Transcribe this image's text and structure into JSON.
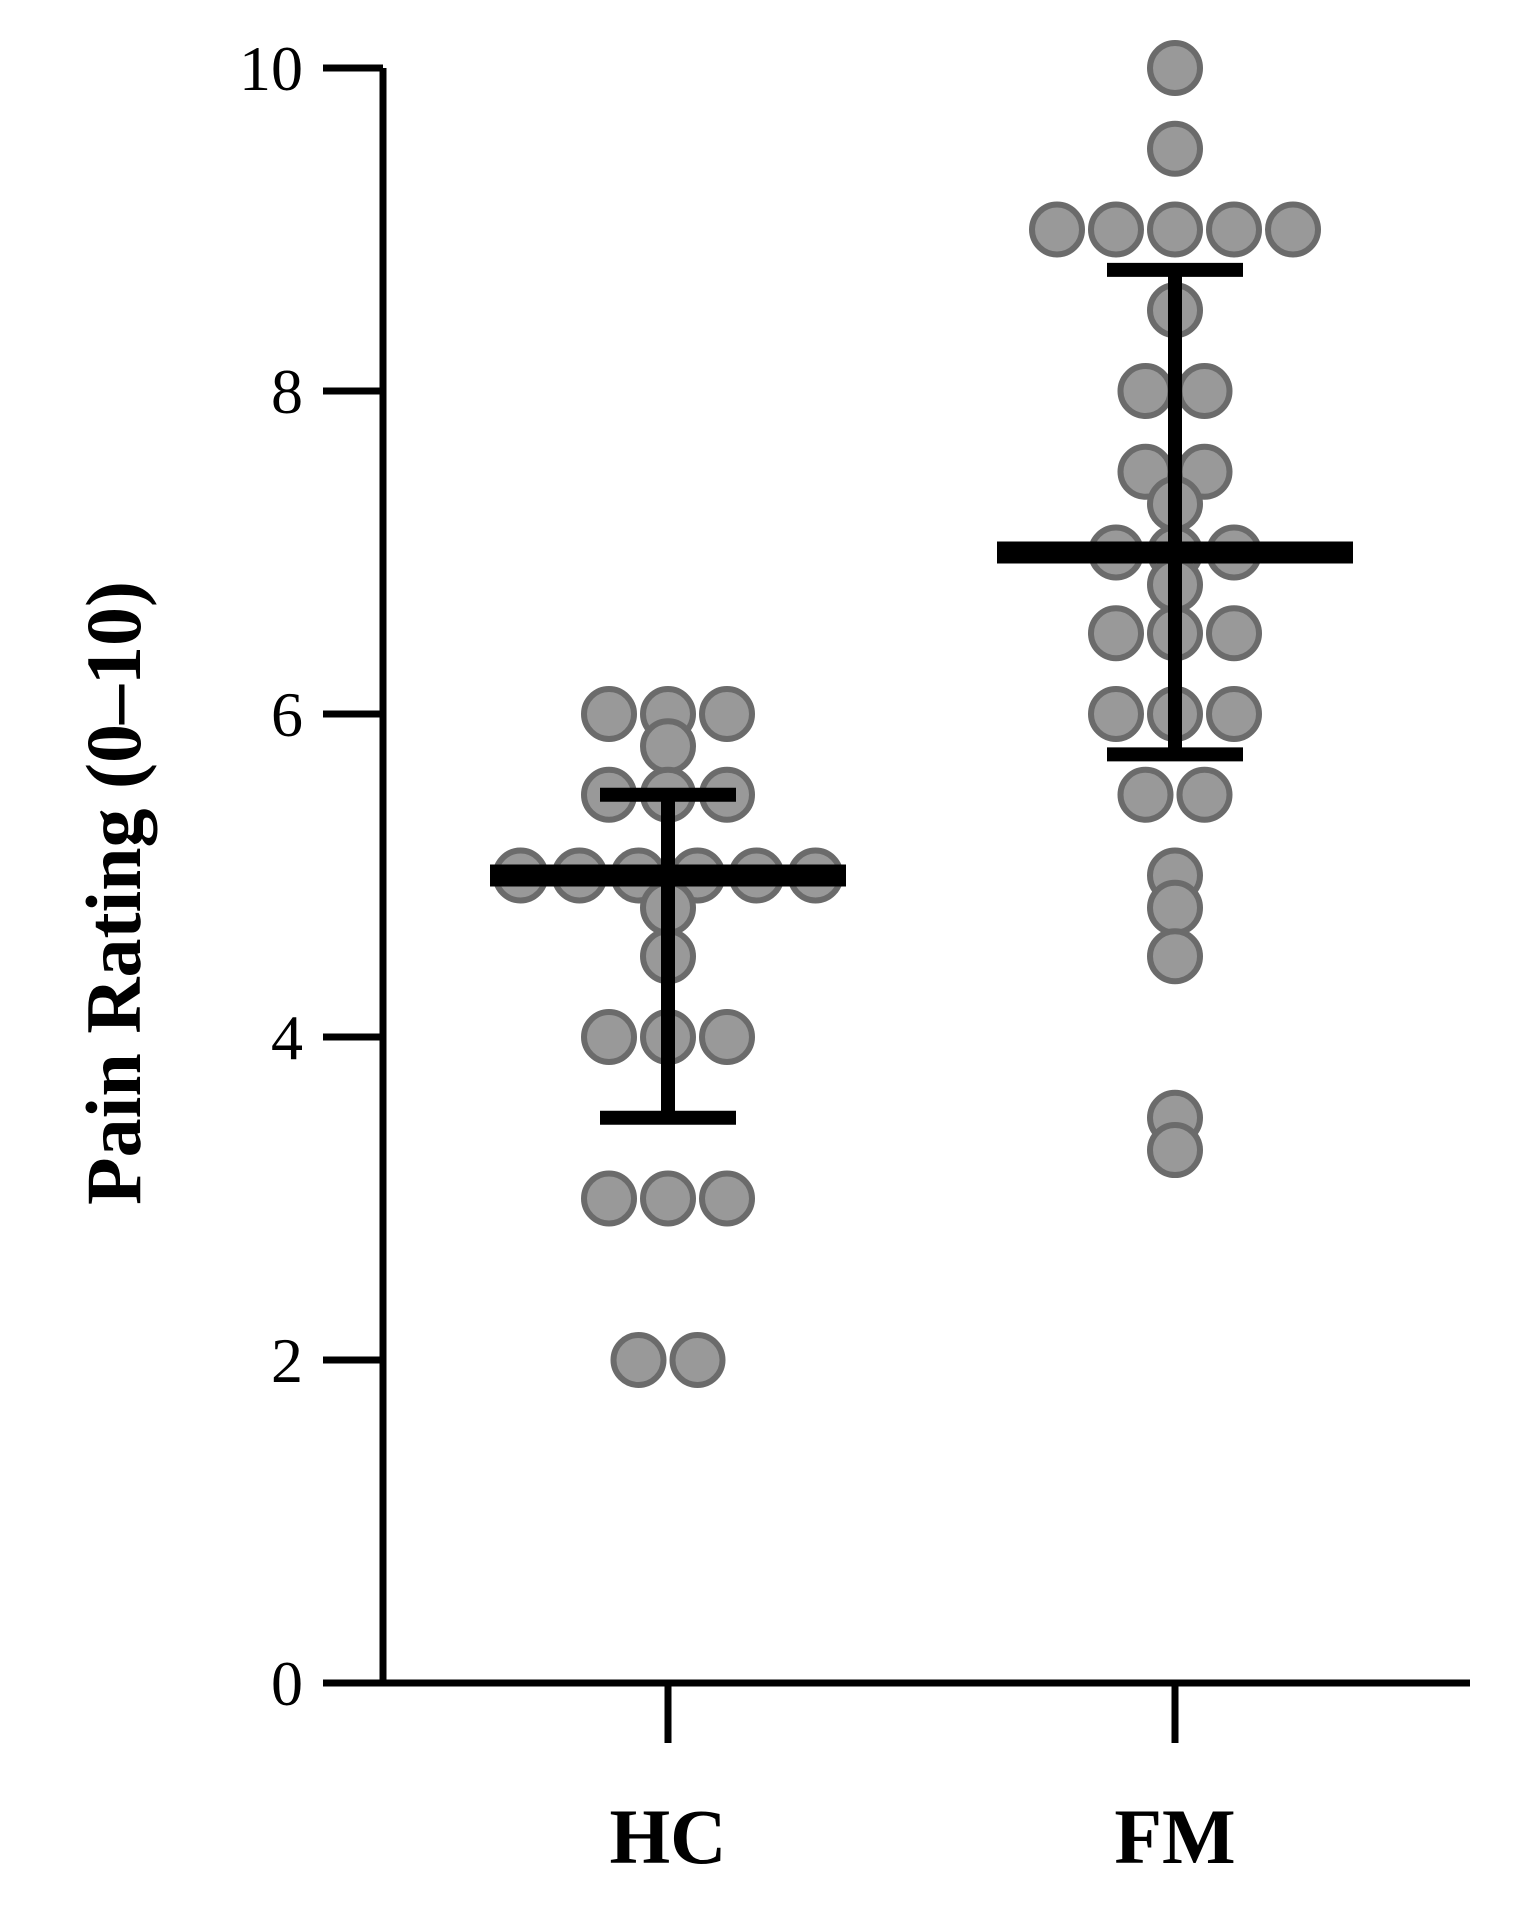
{
  "chart_data": {
    "type": "scatter",
    "title": "",
    "xlabel": "",
    "ylabel": "Pain Rating (0–10)",
    "ylim": [
      0,
      10
    ],
    "yticks": [
      "0",
      "2",
      "4",
      "6",
      "8",
      "10"
    ],
    "categories": [
      "HC",
      "FM"
    ],
    "grid": false,
    "legend": "none",
    "colors": {
      "point_fill": "#999999",
      "point_stroke": "#6b6b6b",
      "axis": "#000000",
      "summary_bars": "#000000"
    },
    "series": [
      {
        "category": "HC",
        "mean": 5.0,
        "sd_low": 3.5,
        "sd_high": 5.5,
        "points": [
          6,
          5.8,
          6,
          6,
          5.5,
          5.5,
          5.5,
          5,
          5,
          5,
          5,
          5,
          5,
          4.8,
          4.5,
          4,
          4,
          4,
          3,
          3,
          3,
          2,
          2
        ]
      },
      {
        "category": "FM",
        "mean": 7.0,
        "sd_low": 5.75,
        "sd_high": 8.75,
        "points": [
          10,
          9.5,
          9,
          9,
          9,
          9,
          9,
          8.5,
          8,
          8,
          7.5,
          7.5,
          7.3,
          7,
          7,
          7,
          6.8,
          6.5,
          6.5,
          6.5,
          6,
          6,
          6,
          5.5,
          5.5,
          5,
          4.8,
          4.5,
          3.5,
          3.3
        ]
      }
    ]
  }
}
